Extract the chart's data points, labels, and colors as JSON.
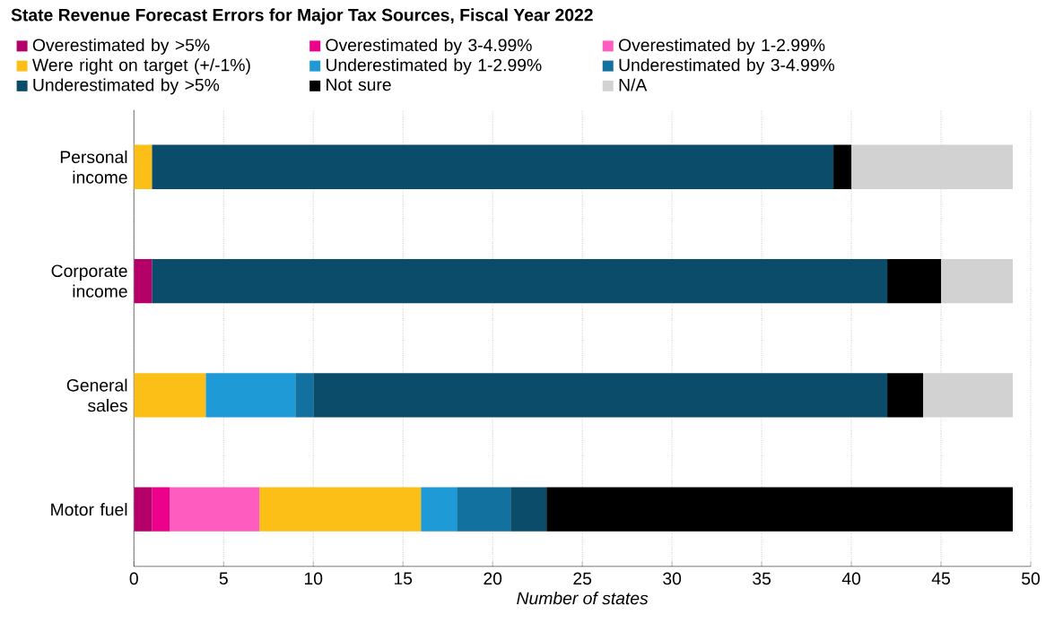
{
  "chart_data": {
    "type": "bar",
    "orientation": "horizontal",
    "stacked": true,
    "title": "State Revenue Forecast Errors for Major Tax Sources, Fiscal Year 2022",
    "xlabel": "Number of states",
    "categories": [
      "Personal income",
      "Corporate income",
      "General sales",
      "Motor fuel"
    ],
    "series": [
      {
        "name": "Overestimated by >5%",
        "color": "#b5006a",
        "values": [
          0,
          1,
          0,
          1
        ]
      },
      {
        "name": "Overestimated by 3-4.99%",
        "color": "#ec008c",
        "values": [
          0,
          0,
          0,
          1
        ]
      },
      {
        "name": "Overestimated by 1-2.99%",
        "color": "#ff5cc0",
        "values": [
          0,
          0,
          0,
          5
        ]
      },
      {
        "name": "Were right on target (+/-1%)",
        "color": "#fcbf17",
        "values": [
          1,
          0,
          4,
          9
        ]
      },
      {
        "name": "Underestimated by 1-2.99%",
        "color": "#1e9ad6",
        "values": [
          0,
          0,
          5,
          2
        ]
      },
      {
        "name": "Underestimated by 3-4.99%",
        "color": "#12719e",
        "values": [
          0,
          0,
          1,
          3
        ]
      },
      {
        "name": "Underestimated by >5%",
        "color": "#0a4c6a",
        "values": [
          38,
          41,
          32,
          2
        ]
      },
      {
        "name": "Not sure",
        "color": "#000000",
        "values": [
          1,
          3,
          2,
          26
        ]
      },
      {
        "name": "N/A",
        "color": "#d2d2d2",
        "values": [
          9,
          4,
          5,
          0
        ]
      }
    ],
    "xlim": [
      0,
      50
    ],
    "xticks": [
      0,
      5,
      10,
      15,
      20,
      25,
      30,
      35,
      40,
      45,
      50
    ],
    "grid": "x",
    "legend": "top"
  }
}
